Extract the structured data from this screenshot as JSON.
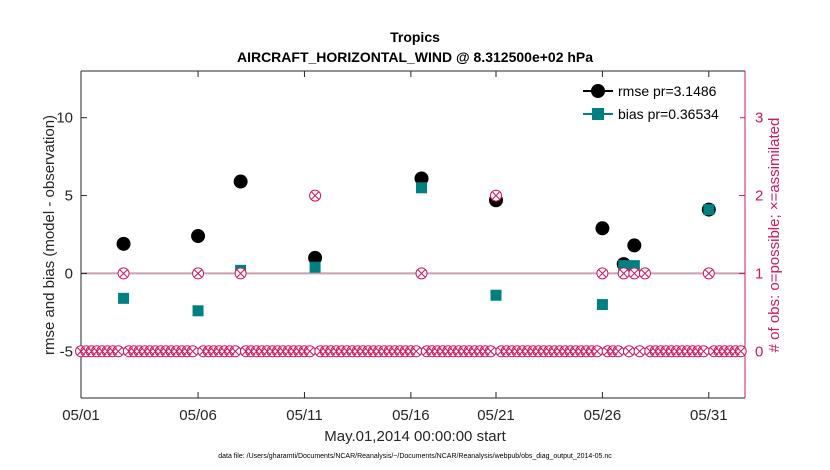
{
  "chart_data": {
    "type": "scatter",
    "title": "Tropics",
    "subtitle": "AIRCRAFT_HORIZONTAL_WIND @ 8.312500e+02 hPa",
    "xlabel": "May.01,2014 00:00:00 start",
    "ylabel": "rmse and bias (model - observation)",
    "y2label": "# of obs: o=possible; ×=assimilated",
    "footnote": "data file: /Users/gharamti/Documents/NCAR/Reanalysis/~/Documents/NCAR/Reanalysis/webpub/obs_diag_output_2014-05.nc",
    "xlim": [
      0,
      31.2
    ],
    "ylim": [
      -8,
      13
    ],
    "y2lim": [
      -0.6,
      3.6
    ],
    "grid": false,
    "legend_position": "top-right",
    "x_ticks": [
      0,
      5.5,
      10.5,
      15.5,
      19.5,
      24.5,
      29.5
    ],
    "x_tick_labels": [
      "05/01",
      "05/06",
      "05/11",
      "05/16",
      "05/21",
      "05/26",
      "05/31"
    ],
    "y_ticks": [
      -5,
      0,
      5,
      10
    ],
    "y_tick_labels": [
      "-5",
      "0",
      "5",
      "10"
    ],
    "y2_ticks": [
      0,
      1,
      2,
      3
    ],
    "y2_tick_labels": [
      "0",
      "1",
      "2",
      "3"
    ],
    "colors": {
      "rmse": "#000000",
      "bias": "#008080",
      "obs": "#D1175F",
      "zero_line": "#C8A0B0"
    },
    "series": [
      {
        "name": "rmse",
        "legend_label": "rmse pr=3.1486",
        "axis": "left",
        "marker": "circle",
        "x": [
          2,
          5.5,
          7.5,
          11,
          16,
          19.5,
          24.5,
          25.5,
          26,
          29.5
        ],
        "values": [
          1.9,
          2.4,
          5.9,
          1.0,
          6.1,
          4.7,
          2.9,
          0.6,
          1.8,
          4.1
        ]
      },
      {
        "name": "bias",
        "legend_label": "bias pr=0.36534",
        "axis": "left",
        "marker": "square",
        "x": [
          2,
          5.5,
          7.5,
          11,
          16,
          19.5,
          24.5,
          25.5,
          26,
          29.5
        ],
        "values": [
          -1.6,
          -2.4,
          0.2,
          0.4,
          5.5,
          -1.4,
          -2.0,
          0.5,
          0.5,
          4.1
        ]
      },
      {
        "name": "obs_possible",
        "axis": "right",
        "marker": "circle-open",
        "x": [
          0,
          0.25,
          0.5,
          0.75,
          1,
          1.25,
          1.5,
          1.75,
          2,
          2.25,
          2.5,
          2.75,
          3,
          3.25,
          3.5,
          3.75,
          4,
          4.25,
          4.5,
          4.75,
          5,
          5.25,
          5.5,
          5.75,
          6,
          6.25,
          6.5,
          6.75,
          7,
          7.25,
          7.5,
          7.75,
          8,
          8.25,
          8.5,
          8.75,
          9,
          9.25,
          9.5,
          9.75,
          10,
          10.25,
          10.5,
          10.75,
          11,
          11.25,
          11.5,
          11.75,
          12,
          12.25,
          12.5,
          12.75,
          13,
          13.25,
          13.5,
          13.75,
          14,
          14.25,
          14.5,
          14.75,
          15,
          15.25,
          15.5,
          15.75,
          16,
          16.25,
          16.5,
          16.75,
          17,
          17.25,
          17.5,
          17.75,
          18,
          18.25,
          18.5,
          18.75,
          19,
          19.25,
          19.5,
          19.75,
          20,
          20.25,
          20.5,
          20.75,
          21,
          21.25,
          21.5,
          21.75,
          22,
          22.25,
          22.5,
          22.75,
          23,
          23.25,
          23.5,
          23.75,
          24,
          24.25,
          24.5,
          24.75,
          25,
          25.25,
          25.5,
          25.75,
          26,
          26.25,
          26.5,
          26.75,
          27,
          27.25,
          27.5,
          27.75,
          28,
          28.25,
          28.5,
          28.75,
          29,
          29.25,
          29.5,
          29.75,
          30,
          30.25,
          30.5,
          30.75,
          31
        ],
        "values": [
          0,
          0,
          0,
          0,
          0,
          0,
          0,
          0,
          1,
          0,
          0,
          0,
          0,
          0,
          0,
          0,
          0,
          0,
          0,
          0,
          0,
          0,
          1,
          0,
          0,
          0,
          0,
          0,
          0,
          0,
          1,
          0,
          0,
          0,
          0,
          0,
          0,
          0,
          0,
          0,
          0,
          0,
          0,
          0,
          2,
          0,
          0,
          0,
          0,
          0,
          0,
          0,
          0,
          0,
          0,
          0,
          0,
          0,
          0,
          0,
          0,
          0,
          0,
          0,
          1,
          0,
          0,
          0,
          0,
          0,
          0,
          0,
          0,
          0,
          0,
          0,
          0,
          0,
          2,
          0,
          0,
          0,
          0,
          0,
          0,
          0,
          0,
          0,
          0,
          0,
          0,
          0,
          0,
          0,
          0,
          0,
          0,
          0,
          1,
          0,
          0,
          0,
          1,
          0,
          1,
          0,
          1,
          0,
          0,
          0,
          0,
          0,
          0,
          0,
          0,
          0,
          0,
          0,
          1,
          0,
          0,
          0,
          0,
          0,
          0
        ]
      },
      {
        "name": "obs_assimilated",
        "axis": "right",
        "marker": "x",
        "x": [
          0,
          0.25,
          0.5,
          0.75,
          1,
          1.25,
          1.5,
          1.75,
          2,
          2.25,
          2.5,
          2.75,
          3,
          3.25,
          3.5,
          3.75,
          4,
          4.25,
          4.5,
          4.75,
          5,
          5.25,
          5.5,
          5.75,
          6,
          6.25,
          6.5,
          6.75,
          7,
          7.25,
          7.5,
          7.75,
          8,
          8.25,
          8.5,
          8.75,
          9,
          9.25,
          9.5,
          9.75,
          10,
          10.25,
          10.5,
          10.75,
          11,
          11.25,
          11.5,
          11.75,
          12,
          12.25,
          12.5,
          12.75,
          13,
          13.25,
          13.5,
          13.75,
          14,
          14.25,
          14.5,
          14.75,
          15,
          15.25,
          15.5,
          15.75,
          16,
          16.25,
          16.5,
          16.75,
          17,
          17.25,
          17.5,
          17.75,
          18,
          18.25,
          18.5,
          18.75,
          19,
          19.25,
          19.5,
          19.75,
          20,
          20.25,
          20.5,
          20.75,
          21,
          21.25,
          21.5,
          21.75,
          22,
          22.25,
          22.5,
          22.75,
          23,
          23.25,
          23.5,
          23.75,
          24,
          24.25,
          24.5,
          24.75,
          25,
          25.25,
          25.5,
          25.75,
          26,
          26.25,
          26.5,
          26.75,
          27,
          27.25,
          27.5,
          27.75,
          28,
          28.25,
          28.5,
          28.75,
          29,
          29.25,
          29.5,
          29.75,
          30,
          30.25,
          30.5,
          30.75,
          31
        ],
        "values": [
          0,
          0,
          0,
          0,
          0,
          0,
          0,
          0,
          1,
          0,
          0,
          0,
          0,
          0,
          0,
          0,
          0,
          0,
          0,
          0,
          0,
          0,
          1,
          0,
          0,
          0,
          0,
          0,
          0,
          0,
          1,
          0,
          0,
          0,
          0,
          0,
          0,
          0,
          0,
          0,
          0,
          0,
          0,
          0,
          2,
          0,
          0,
          0,
          0,
          0,
          0,
          0,
          0,
          0,
          0,
          0,
          0,
          0,
          0,
          0,
          0,
          0,
          0,
          0,
          1,
          0,
          0,
          0,
          0,
          0,
          0,
          0,
          0,
          0,
          0,
          0,
          0,
          0,
          2,
          0,
          0,
          0,
          0,
          0,
          0,
          0,
          0,
          0,
          0,
          0,
          0,
          0,
          0,
          0,
          0,
          0,
          0,
          0,
          1,
          0,
          0,
          0,
          1,
          0,
          1,
          0,
          1,
          0,
          0,
          0,
          0,
          0,
          0,
          0,
          0,
          0,
          0,
          0,
          1,
          0,
          0,
          0,
          0,
          0,
          0
        ]
      }
    ]
  }
}
